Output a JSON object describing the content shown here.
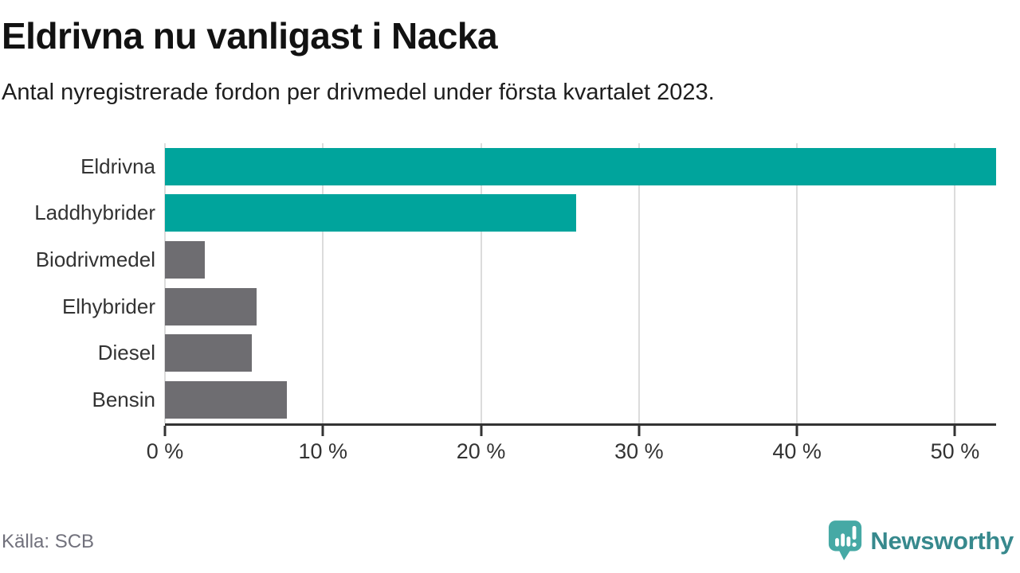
{
  "title": "Eldrivna nu vanligast i Nacka",
  "subtitle": "Antal nyregistrerade fordon per drivmedel under första kvartalet 2023.",
  "source": "Källa: SCB",
  "branding": {
    "name": "Newsworthy",
    "icon": "newsworthy-speech-bubble-bar-chart-icon",
    "icon_color": "#46a9a5",
    "wordmark_color": "#37898d"
  },
  "colors": {
    "highlight_bar": "#00a49c",
    "neutral_bar": "#6e6d71",
    "axis": "#333333",
    "gridline": "#dcdcdc",
    "source_text": "#71717c",
    "background": "#ffffff"
  },
  "chart_data": {
    "type": "bar",
    "orientation": "horizontal",
    "title": "Eldrivna nu vanligast i Nacka",
    "subtitle": "Antal nyregistrerade fordon per drivmedel under första kvartalet 2023.",
    "categories": [
      "Eldrivna",
      "Laddhybrider",
      "Biodrivmedel",
      "Elhybrider",
      "Diesel",
      "Bensin"
    ],
    "values": [
      52.6,
      26.0,
      2.5,
      5.8,
      5.5,
      7.7
    ],
    "bar_colors": [
      "#00a49c",
      "#00a49c",
      "#6e6d71",
      "#6e6d71",
      "#6e6d71",
      "#6e6d71"
    ],
    "unit": "%",
    "x_ticks": [
      0,
      10,
      20,
      30,
      40,
      50
    ],
    "x_tick_labels": [
      "0 %",
      "10 %",
      "20 %",
      "30 %",
      "40 %",
      "50 %"
    ],
    "xlim": [
      0,
      52.6
    ],
    "grid": true,
    "legend": "none",
    "source_note": "Källa: SCB"
  }
}
